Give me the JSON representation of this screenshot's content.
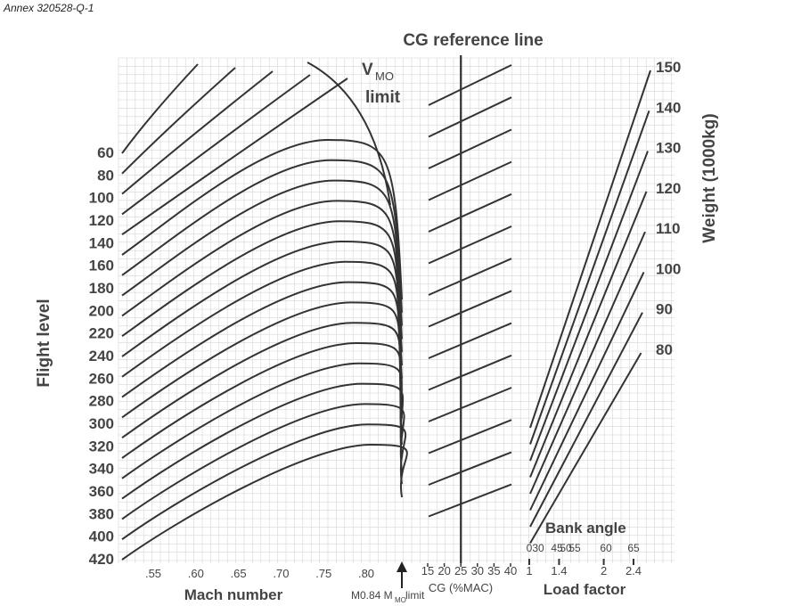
{
  "annex": "Annex 320528-Q-1",
  "chart_data": [
    {
      "type": "line",
      "panel": "Mach number / Flight level",
      "title": "",
      "xlabel": "Mach number",
      "ylabel": "Flight level",
      "x_ticks": [
        ".55",
        ".60",
        ".65",
        ".70",
        ".75",
        ".80"
      ],
      "x_tick_values": [
        0.55,
        0.6,
        0.65,
        0.7,
        0.75,
        0.8
      ],
      "y_ticks": [
        "60",
        "80",
        "100",
        "120",
        "140",
        "160",
        "180",
        "200",
        "220",
        "240",
        "260",
        "280",
        "300",
        "320",
        "340",
        "360",
        "380",
        "400",
        "420"
      ],
      "annotation_vmo_main": "V",
      "annotation_vmo_sub": "MO",
      "annotation_vmo_limit": "limit",
      "annotation_mmo_prefix": "M0.84 M",
      "annotation_mmo_sub": "MO",
      "annotation_mmo_suffix": " limit",
      "curve_count": 21
    },
    {
      "type": "line",
      "panel": "CG correction",
      "title": "CG reference line",
      "xlabel": "CG (%MAC)",
      "x_ticks": [
        "15",
        "20",
        "25",
        "30",
        "35",
        "40"
      ],
      "x_tick_values": [
        15,
        20,
        25,
        30,
        35,
        40
      ],
      "reference_cg": 25,
      "guide_line_count": 14
    },
    {
      "type": "line",
      "panel": "Weight / Load factor",
      "title": "",
      "xlabel": "Load factor",
      "ylabel": "Weight (1000kg)",
      "weights": [
        "150",
        "140",
        "130",
        "120",
        "110",
        "100",
        "90",
        "80"
      ],
      "weight_values": [
        150,
        140,
        130,
        120,
        110,
        100,
        90,
        80
      ],
      "load_factor_ticks": [
        "1",
        "1.4",
        "2",
        "2.4"
      ],
      "load_factor_values": [
        1,
        1.4,
        2,
        2.4
      ],
      "bank_angle_label": "Bank angle",
      "bank_angle_ticks": [
        "0",
        "30",
        "45",
        "50",
        "55",
        "60",
        "65"
      ],
      "bank_angle_values": [
        0,
        30,
        45,
        50,
        55,
        60,
        65
      ]
    }
  ]
}
